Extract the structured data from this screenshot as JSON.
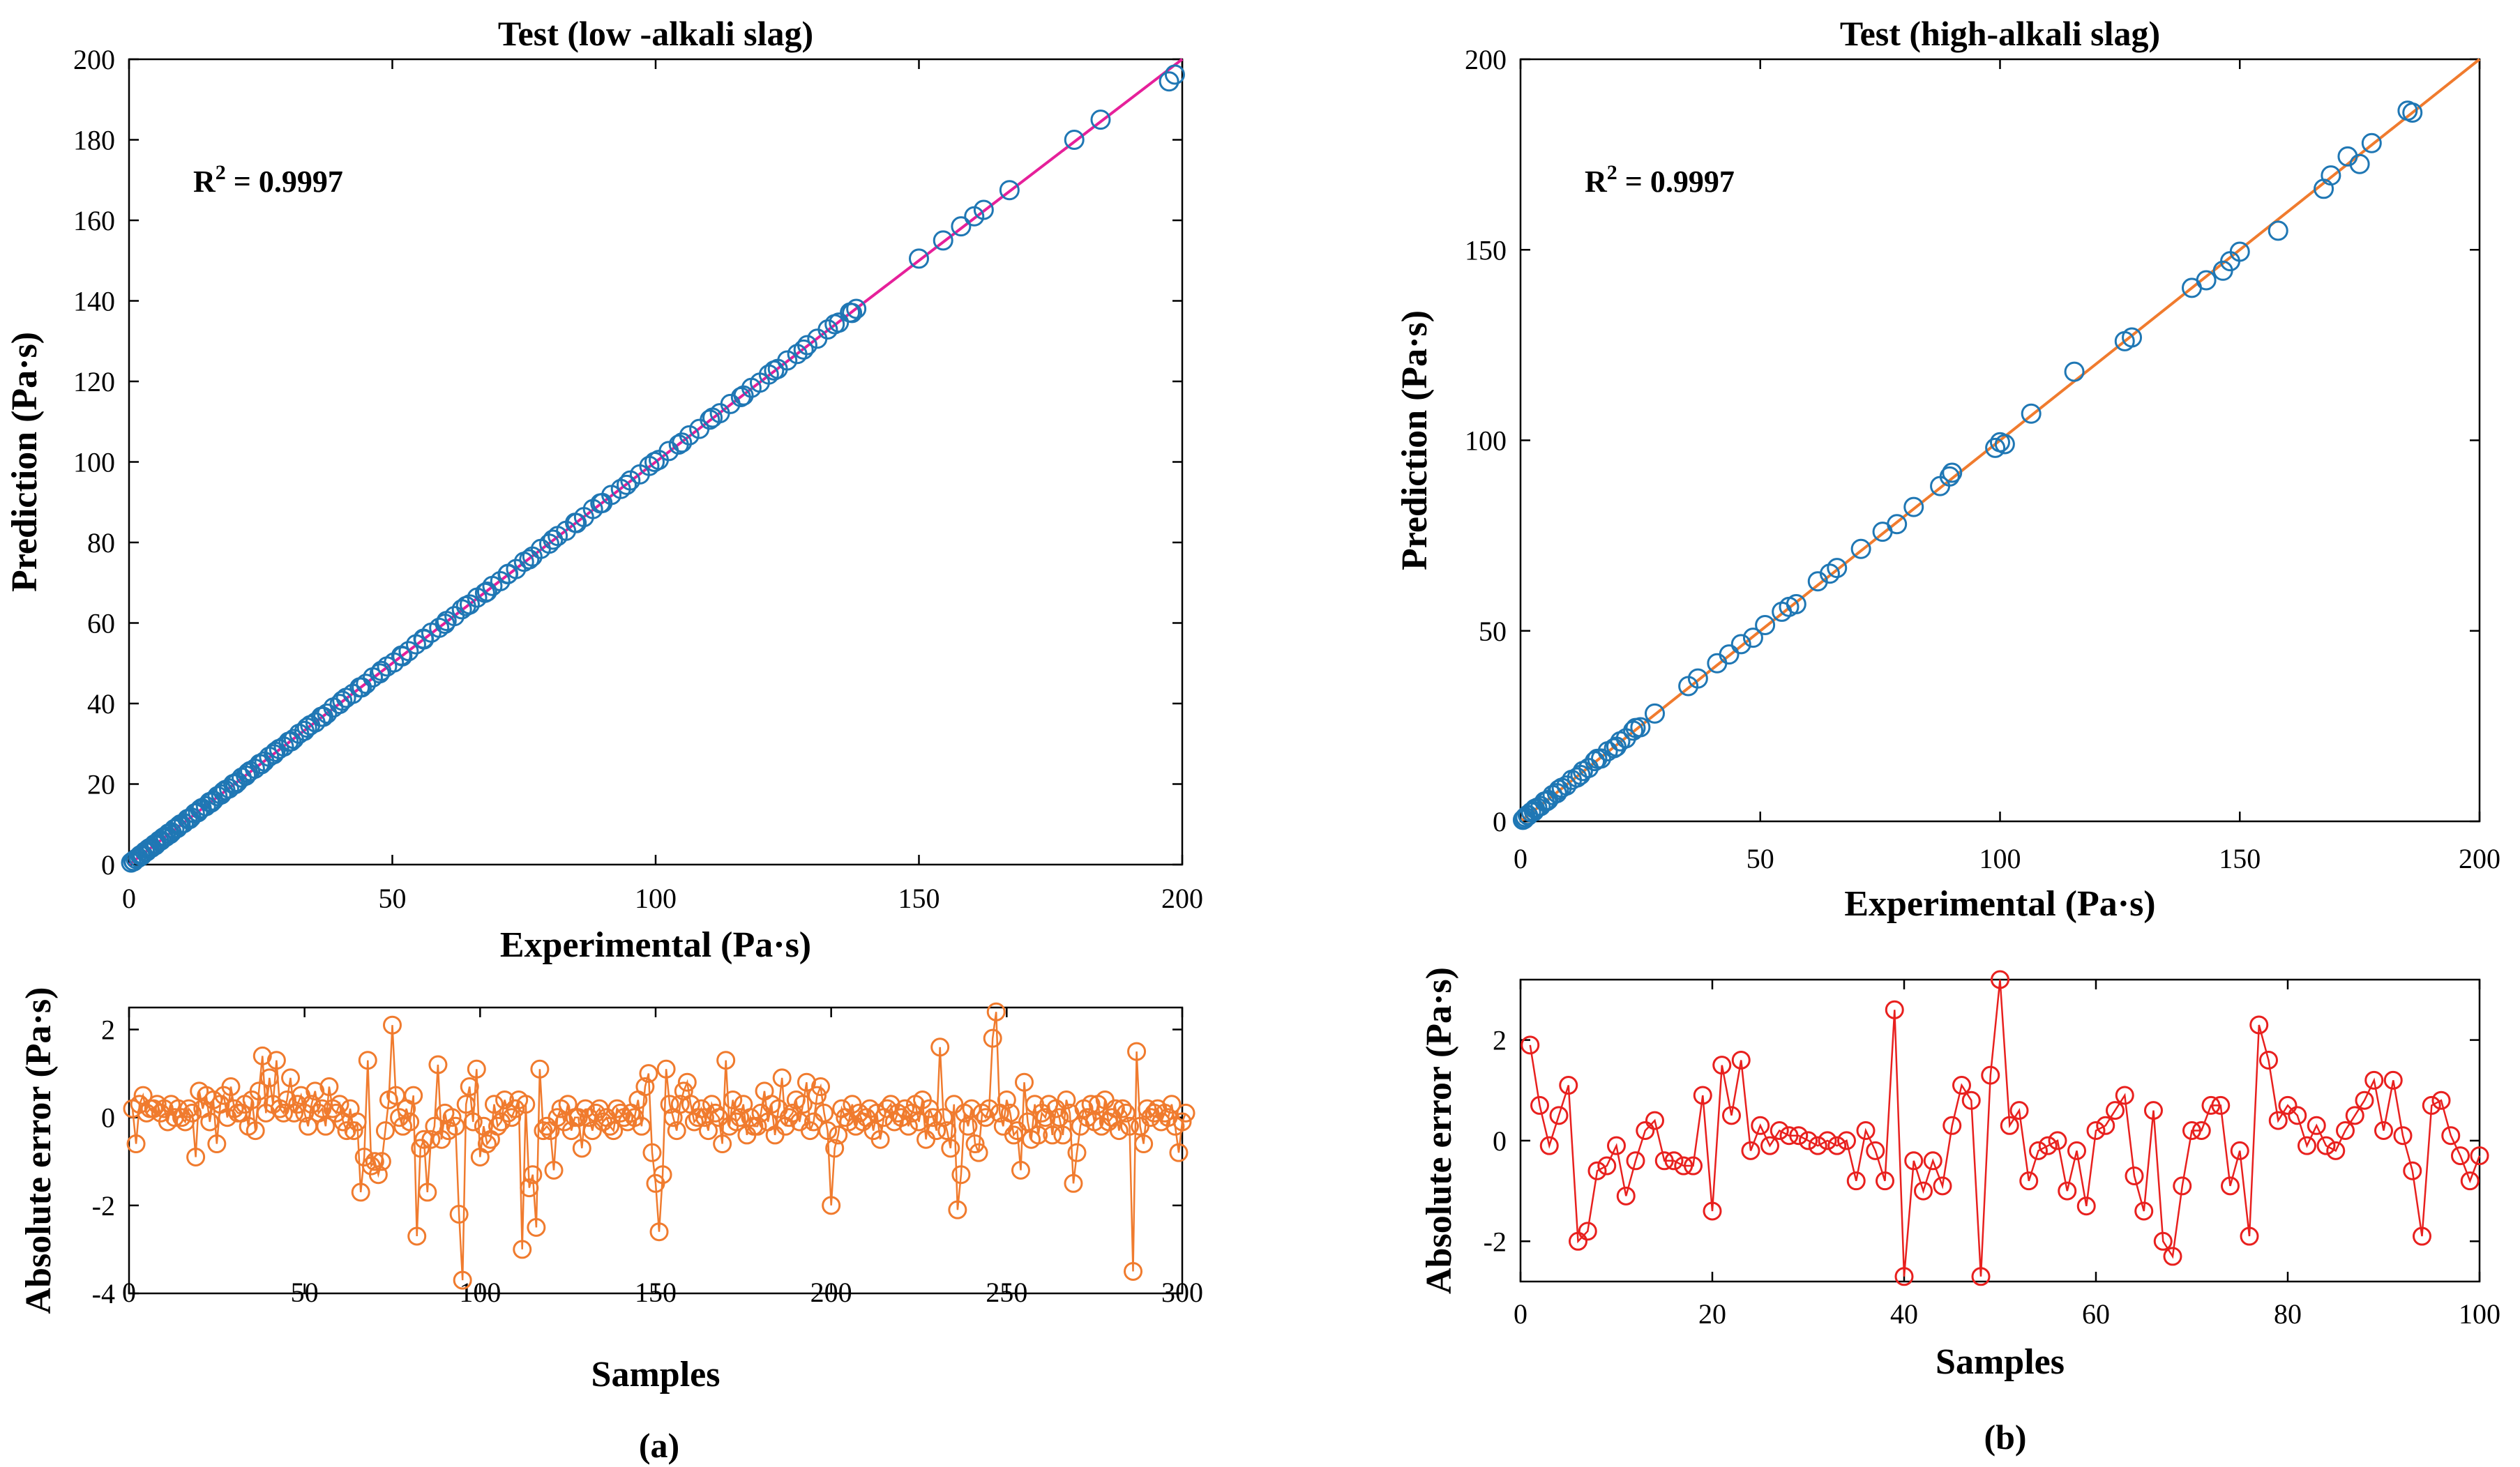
{
  "figure": {
    "captions": [
      "(a)",
      "(b)"
    ]
  },
  "chart_data": [
    {
      "id": "a_scatter",
      "type": "scatter",
      "title": "Test (low -alkali slag)",
      "xlabel": "Experimental (Pa·s)",
      "ylabel": "Prediction (Pa·s)",
      "xlim": [
        0,
        200
      ],
      "ylim": [
        0,
        200
      ],
      "xticks": [
        0,
        50,
        100,
        150,
        200
      ],
      "yticks": [
        0,
        20,
        40,
        60,
        80,
        100,
        120,
        140,
        160,
        180,
        200
      ],
      "annotation": {
        "base": "R",
        "sup": "2",
        "rest": " = 0.9997"
      },
      "fit_line": {
        "x": [
          0,
          200
        ],
        "y": [
          0,
          200
        ],
        "color": "#e6209a"
      },
      "marker_color": "#1f77b4",
      "x": [
        0.4,
        0.9,
        1.3,
        1.8,
        2.1,
        2.6,
        3.0,
        3.4,
        3.9,
        4.3,
        4.8,
        5.2,
        5.7,
        6.1,
        6.6,
        7.0,
        7.5,
        8.1,
        8.6,
        9.2,
        9.8,
        10.4,
        11.1,
        11.8,
        12.5,
        13.1,
        13.8,
        14.6,
        15.3,
        16.0,
        16.8,
        17.5,
        18.3,
        19.0,
        19.8,
        20.6,
        21.4,
        22.2,
        23.0,
        23.9,
        24.8,
        25.7,
        26.6,
        27.5,
        28.5,
        29.4,
        30.3,
        31.3,
        32.3,
        33.3,
        34.4,
        35.4,
        36.5,
        37.6,
        38.8,
        40.0,
        41.2,
        42.5,
        43.8,
        45.0,
        46.3,
        47.6,
        49.0,
        50.3,
        51.7,
        53.1,
        54.5,
        56.0,
        57.4,
        58.9,
        60.3,
        61.8,
        63.2,
        64.7,
        66.1,
        67.6,
        69.0,
        70.5,
        72.0,
        73.5,
        75.0,
        76.6,
        78.2,
        79.8,
        81.4,
        83.0,
        84.7,
        86.4,
        88.1,
        89.9,
        91.6,
        93.4,
        95.2,
        97.0,
        98.8,
        100.6,
        102.5,
        104.4,
        106.4,
        108.3,
        110.3,
        112.2,
        114.2,
        116.2,
        118.2,
        119.8,
        121.5,
        123.2,
        125.0,
        126.9,
        128.8,
        130.7,
        132.7,
        134.8,
        136.9,
        138.1,
        150.0,
        154.6,
        158.0,
        160.5,
        162.3,
        167.2,
        179.5,
        184.5,
        197.5,
        198.6,
        0.8,
        2.4,
        3.6,
        5.0,
        6.4,
        7.8,
        9.5,
        11.5,
        13.5,
        15.6,
        17.9,
        20.2,
        22.6,
        25.1,
        27.8,
        30.8,
        33.8,
        36.9,
        40.5,
        44.2,
        47.9,
        51.9,
        55.9,
        60.0,
        64.0,
        68.0,
        71.9,
        76.0,
        80.5,
        85.0,
        89.5,
        94.5,
        99.8,
        105.0,
        110.8,
        116.7,
        122.5,
        128.1,
        134.0,
        137.3
      ],
      "y": [
        0.5,
        0.8,
        1.4,
        1.7,
        2.3,
        2.5,
        3.2,
        3.3,
        4.1,
        4.2,
        5.0,
        5.1,
        5.9,
        6.0,
        6.8,
        6.9,
        7.7,
        8.0,
        8.8,
        9.1,
        10.0,
        10.3,
        11.3,
        11.7,
        12.7,
        13.0,
        14.0,
        14.5,
        15.5,
        15.9,
        17.0,
        17.4,
        18.5,
        18.9,
        20.0,
        20.5,
        21.6,
        22.1,
        23.2,
        23.8,
        25.0,
        25.6,
        26.8,
        27.4,
        28.7,
        29.3,
        30.5,
        31.2,
        32.5,
        33.2,
        34.6,
        35.3,
        36.7,
        37.5,
        39.0,
        39.9,
        41.4,
        42.4,
        44.0,
        44.9,
        46.5,
        47.5,
        49.2,
        50.2,
        51.9,
        53.0,
        54.7,
        55.9,
        57.6,
        58.8,
        60.5,
        61.7,
        63.4,
        64.6,
        66.3,
        67.5,
        69.2,
        70.4,
        72.2,
        73.4,
        75.2,
        76.5,
        78.4,
        79.7,
        81.6,
        82.9,
        84.9,
        86.3,
        88.3,
        89.8,
        91.8,
        93.3,
        95.4,
        96.9,
        99.0,
        100.5,
        102.7,
        104.3,
        106.6,
        108.2,
        110.5,
        112.1,
        114.4,
        116.1,
        118.4,
        119.7,
        121.7,
        123.1,
        125.2,
        126.8,
        129.0,
        130.6,
        132.9,
        134.6,
        137.1,
        138.0,
        150.5,
        155.0,
        158.5,
        161.0,
        162.6,
        167.5,
        180.0,
        185.0,
        194.5,
        196.2,
        0.9,
        2.2,
        3.8,
        4.8,
        6.6,
        7.6,
        9.7,
        11.3,
        13.7,
        15.4,
        18.1,
        20.0,
        22.8,
        24.9,
        28.0,
        30.6,
        34.0,
        36.7,
        40.7,
        44.0,
        48.1,
        51.7,
        56.1,
        59.8,
        64.2,
        67.8,
        72.1,
        75.8,
        80.7,
        84.8,
        89.7,
        94.3,
        100.0,
        104.8,
        111.0,
        116.5,
        122.7,
        127.9,
        134.2,
        137.0
      ]
    },
    {
      "id": "a_error",
      "type": "line",
      "xlabel": "Samples",
      "ylabel": "Absolute error (Pa·s)",
      "xlim": [
        0,
        300
      ],
      "ylim": [
        -4,
        2.5
      ],
      "xticks": [
        0,
        50,
        100,
        150,
        200,
        250,
        300
      ],
      "yticks": [
        -4,
        -2,
        0,
        2
      ],
      "color": "#f07b2e",
      "values": [
        0.2,
        -0.6,
        0.3,
        0.5,
        0.1,
        0.2,
        0.2,
        0.3,
        0.1,
        0.2,
        -0.1,
        0.3,
        0.0,
        0.2,
        0.0,
        -0.1,
        0.2,
        0.1,
        -0.9,
        0.6,
        0.2,
        0.5,
        -0.1,
        0.4,
        -0.6,
        0.3,
        0.5,
        0.0,
        0.7,
        0.2,
        0.1,
        0.1,
        0.3,
        -0.2,
        0.4,
        -0.3,
        0.6,
        1.4,
        0.1,
        0.9,
        0.3,
        1.3,
        0.2,
        0.1,
        0.4,
        0.9,
        0.1,
        0.3,
        0.5,
        0.1,
        -0.2,
        0.3,
        0.6,
        0.1,
        0.2,
        -0.2,
        0.7,
        0.2,
        0.1,
        0.3,
        -0.1,
        -0.3,
        0.2,
        -0.3,
        -0.1,
        -1.7,
        -0.9,
        1.3,
        -1.1,
        -1.0,
        -1.3,
        -1.0,
        -0.3,
        0.4,
        2.1,
        0.5,
        0.0,
        -0.2,
        0.2,
        -0.1,
        0.5,
        -2.7,
        -0.7,
        -0.5,
        -1.7,
        -0.5,
        -0.2,
        1.2,
        -0.5,
        0.1,
        -0.3,
        0.0,
        -0.2,
        -2.2,
        -3.7,
        0.3,
        0.7,
        -0.1,
        1.1,
        -0.9,
        -0.2,
        -0.6,
        -0.5,
        0.3,
        -0.2,
        -0.1,
        0.4,
        0.1,
        0.0,
        0.2,
        0.4,
        -3.0,
        0.3,
        -1.6,
        -1.3,
        -2.5,
        1.1,
        -0.3,
        -0.2,
        -0.3,
        -1.2,
        0.0,
        0.2,
        -0.1,
        0.3,
        -0.3,
        0.0,
        0.0,
        -0.7,
        0.2,
        0.0,
        -0.3,
        0.1,
        0.2,
        -0.1,
        0.0,
        -0.2,
        -0.3,
        0.2,
        0.1,
        0.0,
        -0.1,
        0.1,
        0.0,
        0.4,
        -0.2,
        0.7,
        1.0,
        -0.8,
        -1.5,
        -2.6,
        -1.3,
        1.1,
        0.3,
        0.0,
        -0.3,
        0.3,
        0.6,
        0.8,
        0.3,
        -0.1,
        0.0,
        0.2,
        0.0,
        -0.3,
        0.3,
        0.1,
        0.0,
        -0.6,
        1.3,
        -0.2,
        0.4,
        -0.1,
        0.0,
        0.3,
        -0.4,
        0.0,
        -0.2,
        -0.2,
        0.1,
        0.6,
        -0.1,
        0.3,
        -0.4,
        0.2,
        0.9,
        -0.2,
        0.0,
        0.1,
        0.4,
        -0.1,
        0.3,
        0.8,
        -0.3,
        -0.1,
        0.5,
        0.7,
        0.1,
        -0.3,
        -2.0,
        -0.7,
        -0.4,
        0.2,
        0.0,
        -0.1,
        0.3,
        -0.2,
        0.1,
        -0.1,
        0.0,
        0.2,
        -0.3,
        0.1,
        -0.5,
        0.0,
        0.2,
        0.3,
        -0.1,
        0.1,
        0.0,
        0.2,
        -0.2,
        0.1,
        0.3,
        -0.1,
        0.4,
        -0.5,
        0.2,
        0.0,
        -0.3,
        1.6,
        0.0,
        -0.3,
        -0.7,
        0.3,
        -2.1,
        -1.3,
        0.1,
        -0.2,
        0.2,
        -0.6,
        -0.8,
        0.1,
        0.0,
        0.2,
        1.8,
        2.4,
        0.1,
        -0.2,
        0.4,
        0.1,
        -0.4,
        -0.3,
        -1.2,
        0.8,
        -0.1,
        -0.5,
        0.3,
        -0.4,
        0.1,
        0.0,
        0.3,
        -0.4,
        0.2,
        0.0,
        -0.4,
        0.4,
        0.1,
        -1.5,
        -0.8,
        -0.2,
        0.2,
        0.0,
        0.3,
        -0.1,
        0.3,
        -0.2,
        0.4,
        -0.1,
        0.0,
        0.2,
        -0.3,
        0.2,
        0.1,
        -0.2,
        -3.5,
        1.5,
        -0.2,
        -0.6,
        0.2,
        0.0,
        0.1,
        0.2,
        -0.1,
        0.1,
        0.0,
        0.3,
        -0.2,
        -0.8,
        -0.1,
        0.1
      ]
    },
    {
      "id": "b_scatter",
      "type": "scatter",
      "title": "Test (high-alkali slag)",
      "xlabel": "Experimental (Pa·s)",
      "ylabel": "Prediction (Pa·s)",
      "xlim": [
        0,
        200
      ],
      "ylim": [
        0,
        200
      ],
      "xticks": [
        0,
        50,
        100,
        150,
        200
      ],
      "yticks": [
        0,
        50,
        100,
        150,
        200
      ],
      "annotation": {
        "base": "R",
        "sup": "2",
        "rest": " = 0.9997"
      },
      "fit_line": {
        "x": [
          0,
          200
        ],
        "y": [
          0,
          200
        ],
        "color": "#f07b2e"
      },
      "marker_color": "#1f77b4",
      "x": [
        0.5,
        1.0,
        1.6,
        2.2,
        2.8,
        3.5,
        4.2,
        5.0,
        5.8,
        6.7,
        7.6,
        8.6,
        9.6,
        10.7,
        11.8,
        13.0,
        14.2,
        15.5,
        16.8,
        18.2,
        19.5,
        20.8,
        22.0,
        23.5,
        25.0,
        28.0,
        35.0,
        37.0,
        41.0,
        43.5,
        46.0,
        48.5,
        51.0,
        54.5,
        56.0,
        57.5,
        62.0,
        64.5,
        66.0,
        71.0,
        75.5,
        78.5,
        82.0,
        87.5,
        89.5,
        90.0,
        99.0,
        100.0,
        101.0,
        106.5,
        115.5,
        126.0,
        127.5,
        140.0,
        143.0,
        146.5,
        148.0,
        150.0,
        158.0,
        167.5,
        169.0,
        172.5,
        175.0,
        177.5,
        185.0,
        186.0,
        0.8,
        1.5,
        3.0,
        5.5,
        8.0,
        12.5,
        16.0,
        20.0,
        24.0
      ],
      "y": [
        0.4,
        1.1,
        1.5,
        2.4,
        2.6,
        3.6,
        4.0,
        5.2,
        5.6,
        6.9,
        7.4,
        8.8,
        9.4,
        10.9,
        11.5,
        13.2,
        14.0,
        15.8,
        16.5,
        18.4,
        19.2,
        21.0,
        21.8,
        23.8,
        24.7,
        28.3,
        35.5,
        37.5,
        41.5,
        43.8,
        46.5,
        48.2,
        51.5,
        55.0,
        56.3,
        57.0,
        63.0,
        65.0,
        66.5,
        71.5,
        76.0,
        78.0,
        82.5,
        88.0,
        90.5,
        91.5,
        98.0,
        99.5,
        99.0,
        107.0,
        118.0,
        126.0,
        127.0,
        140.0,
        142.0,
        144.5,
        147.0,
        149.5,
        155.0,
        166.0,
        169.5,
        174.5,
        172.5,
        178.0,
        186.5,
        186.0,
        0.6,
        1.7,
        3.3,
        5.3,
        8.3,
        12.2,
        16.4,
        19.6,
        24.5
      ]
    },
    {
      "id": "b_error",
      "type": "line",
      "xlabel": "Samples",
      "ylabel": "Absolute error (Pa·s)",
      "xlim": [
        0,
        100
      ],
      "ylim": [
        -2.8,
        3.2
      ],
      "xticks": [
        0,
        20,
        40,
        60,
        80,
        100
      ],
      "yticks": [
        -2,
        0,
        2
      ],
      "color": "#e8201e",
      "values": [
        1.9,
        0.7,
        -0.1,
        0.5,
        1.1,
        -2.0,
        -1.8,
        -0.6,
        -0.5,
        -0.1,
        -1.1,
        -0.4,
        0.2,
        0.4,
        -0.4,
        -0.4,
        -0.5,
        -0.5,
        0.9,
        -1.4,
        1.5,
        0.5,
        1.6,
        -0.2,
        0.3,
        -0.1,
        0.2,
        0.1,
        0.1,
        0.0,
        -0.1,
        0.0,
        -0.1,
        0.0,
        -0.8,
        0.2,
        -0.2,
        -0.8,
        2.6,
        -2.7,
        -0.4,
        -1.0,
        -0.4,
        -0.9,
        0.3,
        1.1,
        0.8,
        -2.7,
        1.3,
        3.2,
        0.3,
        0.6,
        -0.8,
        -0.2,
        -0.1,
        0.0,
        -1.0,
        -0.2,
        -1.3,
        0.2,
        0.3,
        0.6,
        0.9,
        -0.7,
        -1.4,
        0.6,
        -2.0,
        -2.3,
        -0.9,
        0.2,
        0.2,
        0.7,
        0.7,
        -0.9,
        -0.2,
        -1.9,
        2.3,
        1.6,
        0.4,
        0.7,
        0.5,
        -0.1,
        0.3,
        -0.1,
        -0.2,
        0.2,
        0.5,
        0.8,
        1.2,
        0.2,
        1.2,
        0.1,
        -0.6,
        -1.9,
        0.7,
        0.8,
        0.1,
        -0.3,
        -0.8,
        -0.3
      ]
    }
  ]
}
